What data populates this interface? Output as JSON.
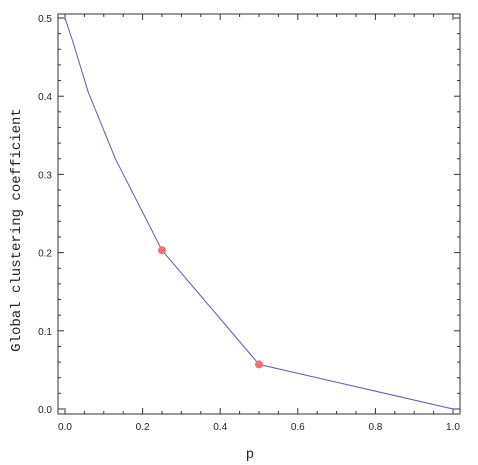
{
  "chart_data": {
    "type": "line",
    "title": "",
    "xlabel": "p",
    "ylabel": "Global clustering coefficient",
    "xlim": [
      0.0,
      1.0
    ],
    "ylim": [
      0.0,
      0.5
    ],
    "xticks": [
      0.0,
      0.2,
      0.4,
      0.6,
      0.8,
      1.0
    ],
    "xtick_labels": [
      "0.0",
      "0.2",
      "0.4",
      "0.6",
      "0.8",
      "1.0"
    ],
    "yticks": [
      0.0,
      0.1,
      0.2,
      0.3,
      0.4,
      0.5
    ],
    "ytick_labels": [
      "0.0",
      "0.1",
      "0.2",
      "0.3",
      "0.4",
      "0.5"
    ],
    "grid": false,
    "series": [
      {
        "x": [
          0.0,
          0.02,
          0.06,
          0.13,
          0.25,
          0.5,
          1.0
        ],
        "y": [
          0.5,
          0.47,
          0.405,
          0.32,
          0.203,
          0.057,
          0.0
        ],
        "color": "#5b5ba8"
      }
    ],
    "highlighted_points": {
      "x": [
        0.25,
        0.5
      ],
      "y": [
        0.203,
        0.057
      ],
      "color": "#f07074"
    }
  }
}
